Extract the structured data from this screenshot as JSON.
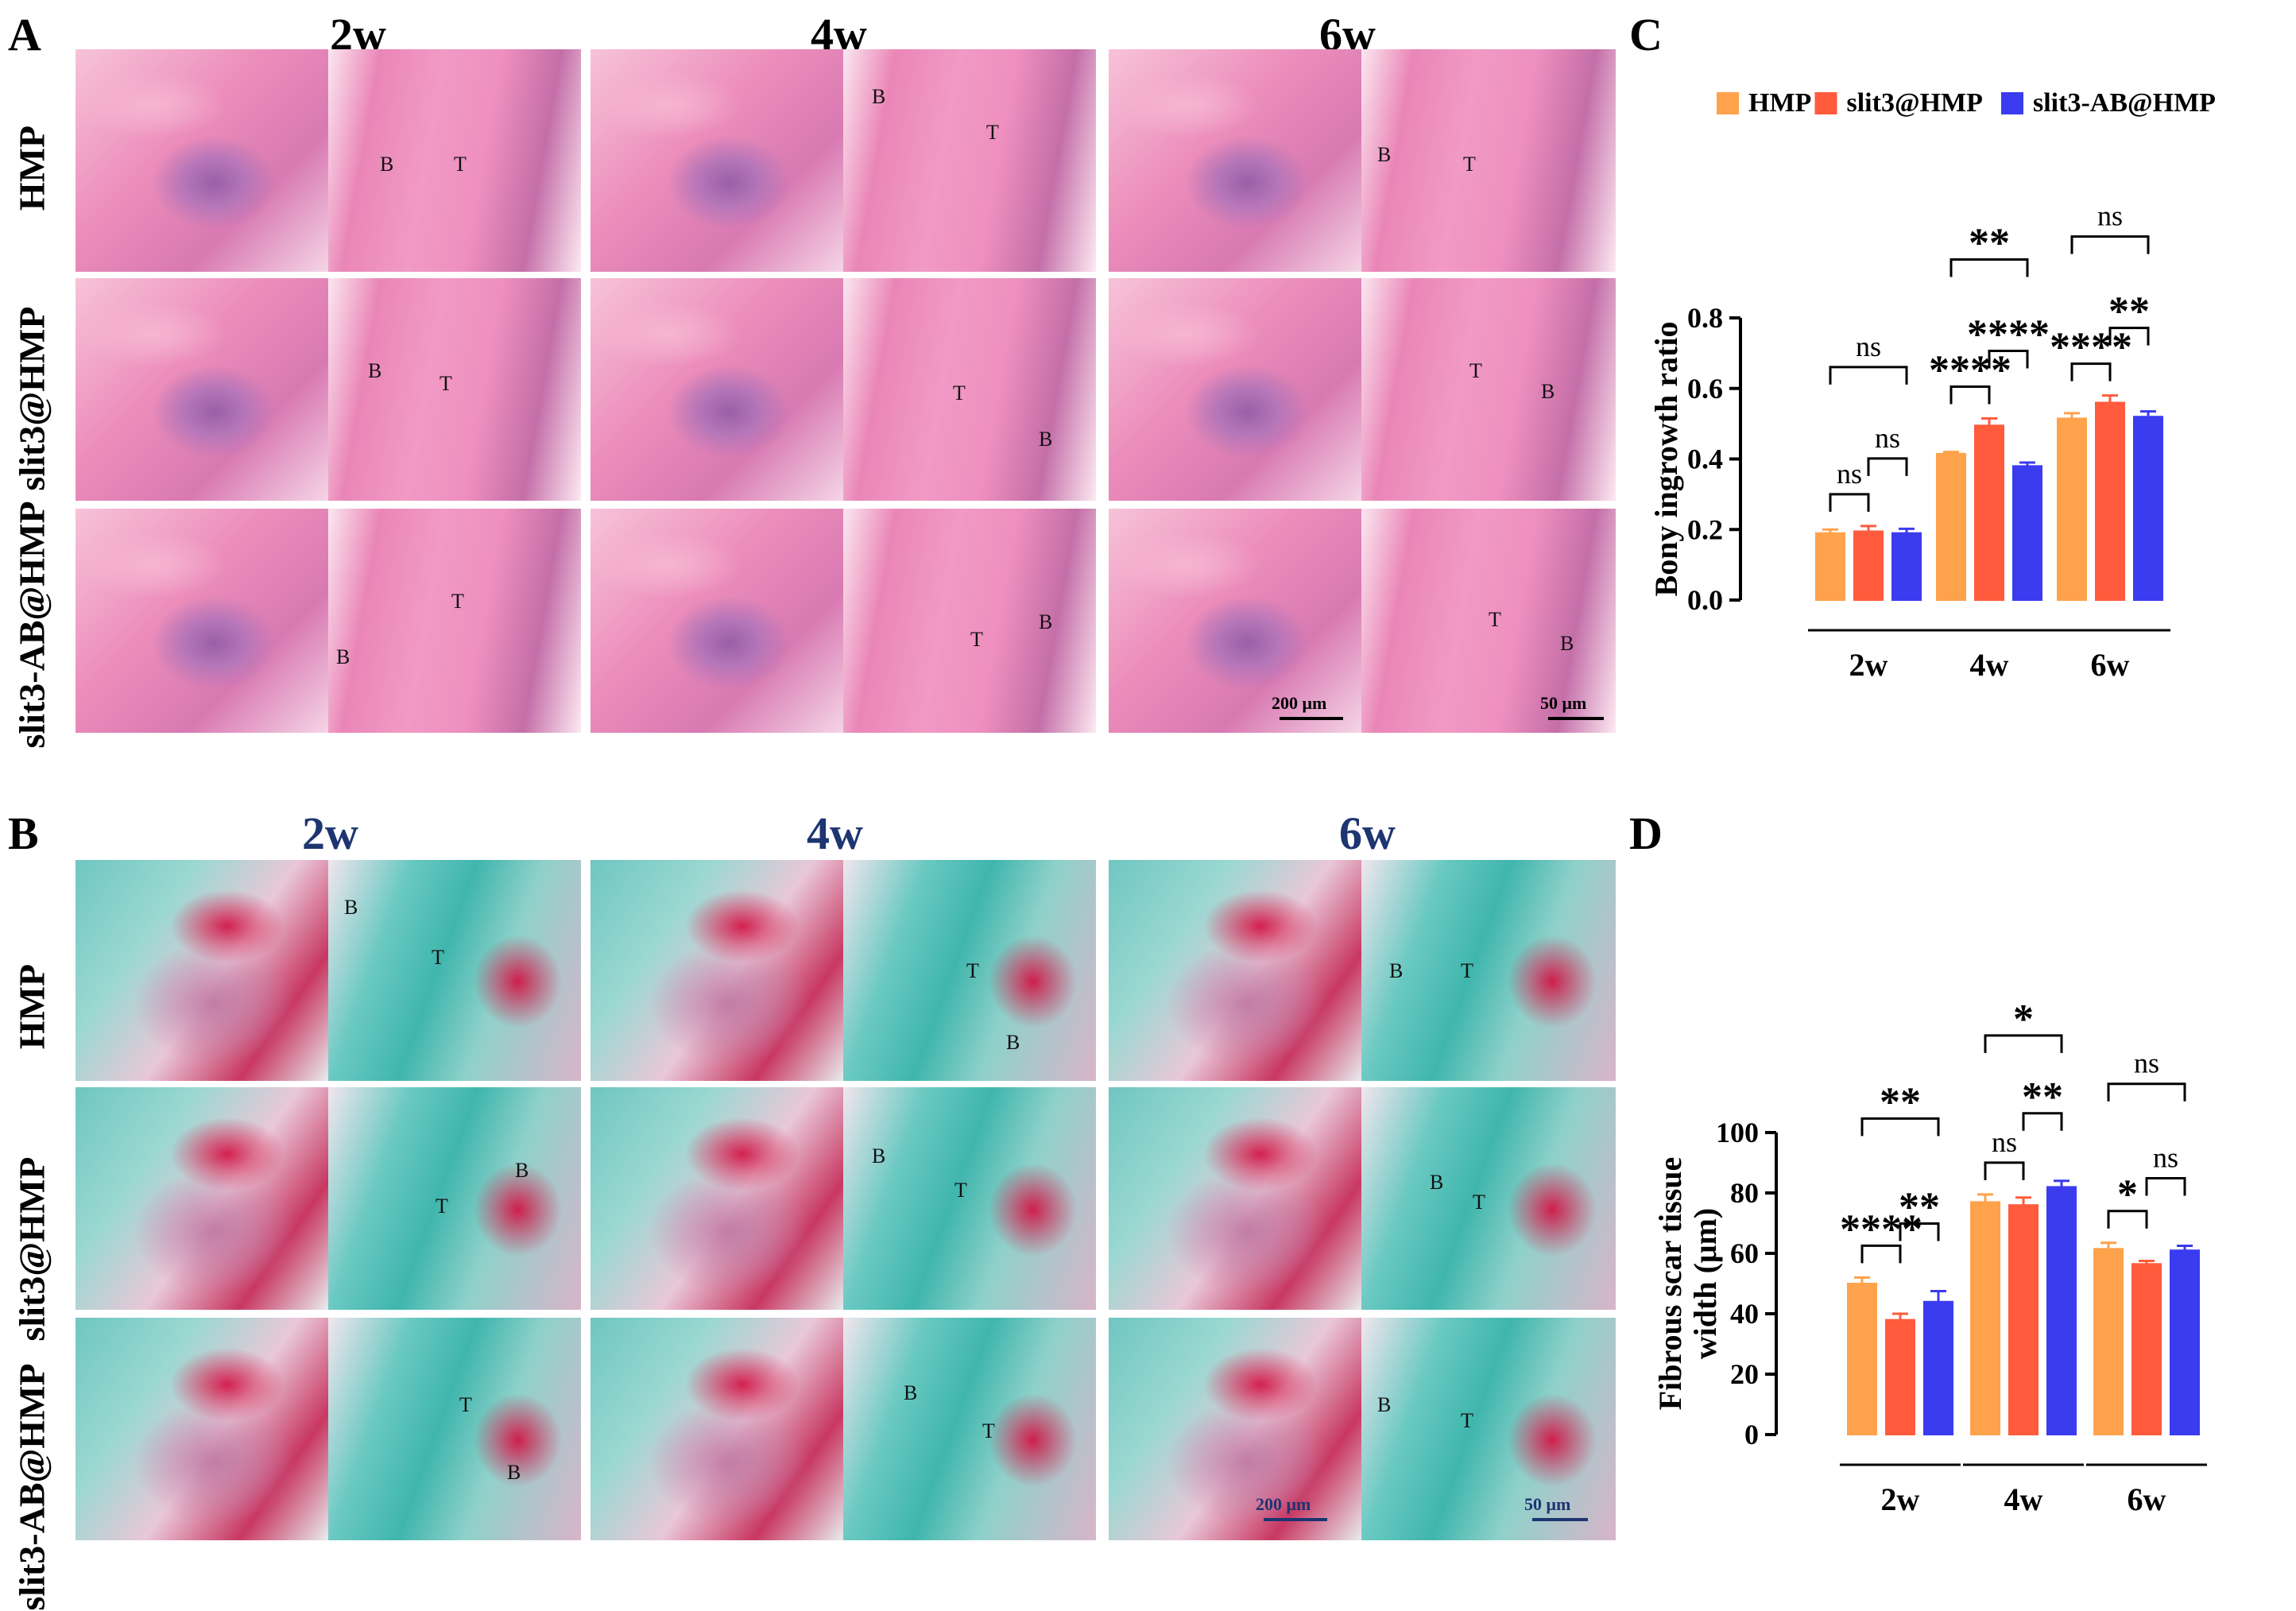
{
  "panels": {
    "A": "A",
    "B": "B",
    "C": "C",
    "D": "D"
  },
  "timepoints": [
    "2w",
    "4w",
    "6w"
  ],
  "groups": [
    "HMP",
    "slit3@HMP",
    "slit3-AB@HMP"
  ],
  "scale_bars": {
    "low": "200 μm",
    "high": "50 μm"
  },
  "tissue_labels": {
    "bone": "B",
    "tendon": "T"
  },
  "colors": {
    "HMP": "#ffa24c",
    "slit3@HMP": "#ff5b3c",
    "slit3-AB@HMP": "#3b3bf0",
    "he_time": "#000000",
    "mt_time": "#1d3570"
  },
  "chart_data": [
    {
      "panel": "C",
      "type": "bar",
      "categories": [
        "2w",
        "4w",
        "6w"
      ],
      "series": [
        {
          "name": "HMP",
          "values": [
            0.19,
            0.415,
            0.515
          ],
          "errors": [
            0.01,
            0.005,
            0.015
          ]
        },
        {
          "name": "slit3@HMP",
          "values": [
            0.195,
            0.495,
            0.56
          ],
          "errors": [
            0.015,
            0.02,
            0.02
          ]
        },
        {
          "name": "slit3-AB@HMP",
          "values": [
            0.19,
            0.38,
            0.52
          ],
          "errors": [
            0.012,
            0.01,
            0.015
          ]
        }
      ],
      "ylabel": "Bony ingrowth ratio",
      "ylim": [
        0,
        0.8
      ],
      "yticks": [
        "0.0",
        "0.2",
        "0.4",
        "0.6",
        "0.8"
      ],
      "legend": "top",
      "significance": [
        {
          "group": "2w",
          "from": 0,
          "to": 1,
          "label": "ns"
        },
        {
          "group": "2w",
          "from": 1,
          "to": 2,
          "label": "ns"
        },
        {
          "group": "2w",
          "from": 0,
          "to": 2,
          "label": "ns"
        },
        {
          "group": "4w",
          "from": 0,
          "to": 1,
          "label": "****"
        },
        {
          "group": "4w",
          "from": 1,
          "to": 2,
          "label": "****"
        },
        {
          "group": "4w",
          "from": 0,
          "to": 2,
          "label": "**"
        },
        {
          "group": "6w",
          "from": 0,
          "to": 1,
          "label": "****"
        },
        {
          "group": "6w",
          "from": 1,
          "to": 2,
          "label": "**"
        },
        {
          "group": "6w",
          "from": 0,
          "to": 2,
          "label": "ns"
        }
      ]
    },
    {
      "panel": "D",
      "type": "bar",
      "categories": [
        "2w",
        "4w",
        "6w"
      ],
      "series": [
        {
          "name": "HMP",
          "values": [
            50,
            77,
            61.5
          ],
          "errors": [
            2,
            2.5,
            2
          ]
        },
        {
          "name": "slit3@HMP",
          "values": [
            38,
            76,
            56.5
          ],
          "errors": [
            2,
            2.5,
            1
          ]
        },
        {
          "name": "slit3-AB@HMP",
          "values": [
            44,
            82,
            61
          ],
          "errors": [
            3.5,
            2,
            1.5
          ]
        }
      ],
      "ylabel": "Fibrous scar tissue width (μm)",
      "ylabel_lines": [
        "Fibrous scar tissue",
        "width (μm)"
      ],
      "ylim": [
        0,
        100
      ],
      "yticks": [
        "0",
        "20",
        "40",
        "60",
        "80",
        "100"
      ],
      "significance": [
        {
          "group": "2w",
          "from": 0,
          "to": 1,
          "label": "****"
        },
        {
          "group": "2w",
          "from": 1,
          "to": 2,
          "label": "**"
        },
        {
          "group": "2w",
          "from": 0,
          "to": 2,
          "label": "**"
        },
        {
          "group": "4w",
          "from": 0,
          "to": 1,
          "label": "ns"
        },
        {
          "group": "4w",
          "from": 1,
          "to": 2,
          "label": "**"
        },
        {
          "group": "4w",
          "from": 0,
          "to": 2,
          "label": "*"
        },
        {
          "group": "6w",
          "from": 0,
          "to": 1,
          "label": "*"
        },
        {
          "group": "6w",
          "from": 1,
          "to": 2,
          "label": "ns"
        },
        {
          "group": "6w",
          "from": 0,
          "to": 2,
          "label": "ns"
        }
      ]
    }
  ]
}
